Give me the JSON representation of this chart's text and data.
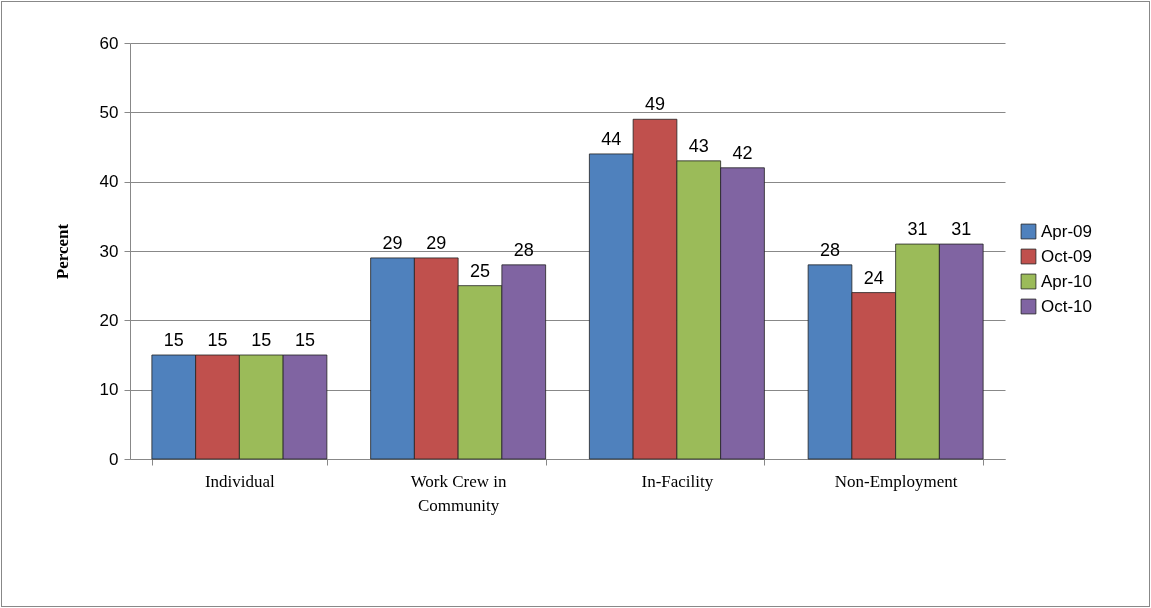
{
  "chart_data": {
    "type": "bar",
    "ylabel": "Percent",
    "categories": [
      "Individual",
      "Work Crew in Community",
      "In-Facility",
      "Non-Employment"
    ],
    "series": [
      {
        "name": "Apr-09",
        "color": "#4f81bd",
        "values": [
          15,
          29,
          44,
          28
        ]
      },
      {
        "name": "Oct-09",
        "color": "#c0504d",
        "values": [
          15,
          29,
          49,
          24
        ]
      },
      {
        "name": "Apr-10",
        "color": "#9bbb59",
        "values": [
          15,
          25,
          43,
          31
        ]
      },
      {
        "name": "Oct-10",
        "color": "#8064a2",
        "values": [
          15,
          28,
          42,
          31
        ]
      }
    ],
    "ylim": [
      0,
      60
    ],
    "yticks": [
      0,
      10,
      20,
      30,
      40,
      50,
      60
    ],
    "grid": "y",
    "legend": "right",
    "data_labels": true
  }
}
